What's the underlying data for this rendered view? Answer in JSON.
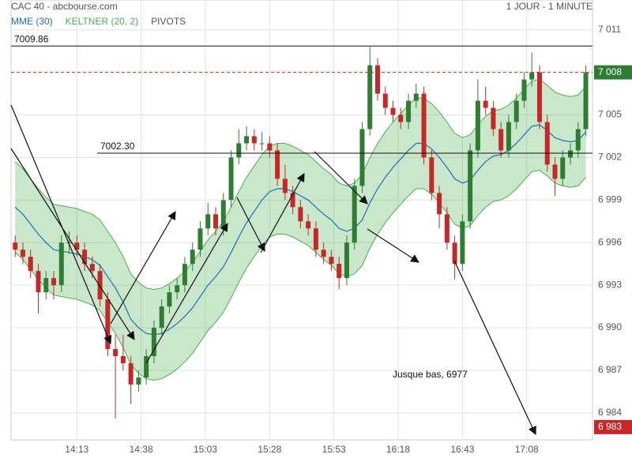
{
  "chart_data": {
    "type": "candlestick",
    "title": "CAC 40 - abcbourse.com",
    "subtitle": "1 JOUR - 1 MINUTE",
    "grid": true,
    "up_color": "#2e7d32",
    "down_color": "#c62828",
    "xlim": [
      827.4,
      1053.6
    ],
    "xticks": [
      {
        "value": 853,
        "label": "14:13"
      },
      {
        "value": 878,
        "label": "14:38"
      },
      {
        "value": 903,
        "label": "15:03"
      },
      {
        "value": 928,
        "label": "15:28"
      },
      {
        "value": 953,
        "label": "15:53"
      },
      {
        "value": 978,
        "label": "16:18"
      },
      {
        "value": 1003,
        "label": "16:43"
      },
      {
        "value": 1028,
        "label": "17:08"
      }
    ],
    "ylim": [
      6982.1,
      7013.1
    ],
    "yticks": [
      {
        "value": 7011,
        "label": "7 011"
      },
      {
        "value": 7005,
        "label": "7 005"
      },
      {
        "value": 7002,
        "label": "7 002"
      },
      {
        "value": 6999,
        "label": "6 999"
      },
      {
        "value": 6996,
        "label": "6 996"
      },
      {
        "value": 6993,
        "label": "6 993"
      },
      {
        "value": 6990,
        "label": "6 990"
      },
      {
        "value": 6987,
        "label": "6 987"
      },
      {
        "value": 6984,
        "label": "6 984"
      }
    ],
    "x": [
      829,
      832,
      835,
      838,
      841,
      844,
      847,
      850,
      853,
      856,
      859,
      862,
      865,
      868,
      871,
      874,
      877,
      880,
      883,
      886,
      889,
      892,
      895,
      898,
      901,
      904,
      907,
      910,
      913,
      916,
      919,
      922,
      925,
      928,
      931,
      934,
      937,
      940,
      943,
      946,
      949,
      952,
      955,
      958,
      961,
      964,
      967,
      970,
      973,
      976,
      979,
      982,
      985,
      988,
      991,
      994,
      997,
      1000,
      1003,
      1006,
      1009,
      1012,
      1015,
      1018,
      1021,
      1024,
      1027,
      1030,
      1033,
      1036,
      1039,
      1042,
      1045,
      1048,
      1051
    ],
    "candles": [
      [
        6996,
        6996.5,
        6995,
        6995.5
      ],
      [
        6995.5,
        6996,
        6994.5,
        6995
      ],
      [
        6995,
        6995.5,
        6993.5,
        6994
      ],
      [
        6994,
        6994.5,
        6991,
        6992.5
      ],
      [
        6992.5,
        6994,
        6992,
        6993.5
      ],
      [
        6993.5,
        6994,
        6992,
        6993
      ],
      [
        6993,
        6996.5,
        6992.5,
        6996
      ],
      [
        6996,
        6996.8,
        6995.2,
        6996
      ],
      [
        6996,
        6996.5,
        6995,
        6995.5
      ],
      [
        6995.5,
        6996,
        6994,
        6994.5
      ],
      [
        6994.5,
        6995,
        6993.5,
        6994
      ],
      [
        6994,
        6994.5,
        6991.5,
        6992
      ],
      [
        6992,
        6992.5,
        6988,
        6988.5
      ],
      [
        6988.5,
        6989.5,
        6983.6,
        6988
      ],
      [
        6988,
        6989.5,
        6987,
        6987.5
      ],
      [
        6987.5,
        6988,
        6984.6,
        6986
      ],
      [
        6986,
        6987,
        6985.5,
        6986.5
      ],
      [
        6986.5,
        6988.5,
        6986,
        6988
      ],
      [
        6988,
        6990.5,
        6987.5,
        6990
      ],
      [
        6990,
        6992,
        6989.5,
        6991.5
      ],
      [
        6991.5,
        6993,
        6991,
        6992.5
      ],
      [
        6992.5,
        6993.5,
        6992,
        6993
      ],
      [
        6993,
        6995,
        6992.5,
        6994.5
      ],
      [
        6994.5,
        6996,
        6994,
        6995.5
      ],
      [
        6995.5,
        6997.5,
        6995,
        6997
      ],
      [
        6997,
        6998.8,
        6996.5,
        6998
      ],
      [
        6998,
        6998.5,
        6996.5,
        6997
      ],
      [
        6997,
        6999.5,
        6996.5,
        6999
      ],
      [
        6999,
        7002.5,
        6998.5,
        7002
      ],
      [
        7002,
        7004,
        7001.5,
        7003
      ],
      [
        7003,
        7004.2,
        7002.5,
        7003.5
      ],
      [
        7003.5,
        7004,
        7002.5,
        7003
      ],
      [
        7003,
        7003.8,
        7002.5,
        7003
      ],
      [
        7003,
        7003.5,
        7002,
        7002.5
      ],
      [
        7002.5,
        7003,
        7000,
        7000.5
      ],
      [
        7000.5,
        7001.5,
        6999,
        6999.5
      ],
      [
        6999.5,
        7000,
        6998,
        6998.5
      ],
      [
        6998.5,
        6999,
        6997,
        6997.5
      ],
      [
        6997.5,
        6998,
        6996.5,
        6997
      ],
      [
        6997,
        6997.5,
        6995,
        6995.5
      ],
      [
        6995.5,
        6996,
        6994.5,
        6995
      ],
      [
        6995,
        6995.5,
        6994,
        6994.5
      ],
      [
        6994.5,
        6995,
        6992.7,
        6993.5
      ],
      [
        6993.5,
        6996.5,
        6993,
        6996
      ],
      [
        6996,
        7000.5,
        6995.5,
        7000
      ],
      [
        7000,
        7004.5,
        6999.5,
        7004
      ],
      [
        7004,
        7009.8,
        7003.5,
        7008.5
      ],
      [
        7008.5,
        7009,
        7006,
        7006.5
      ],
      [
        7006.5,
        7007,
        7005,
        7005.5
      ],
      [
        7005.5,
        7006,
        7004.5,
        7005
      ],
      [
        7005,
        7005.5,
        7004,
        7004.5
      ],
      [
        7004.5,
        7006.5,
        7004,
        7006
      ],
      [
        7006,
        7007.2,
        7005.5,
        7006.5
      ],
      [
        7006.5,
        7007,
        7001.5,
        7002
      ],
      [
        7002,
        7002.5,
        6999,
        6999.5
      ],
      [
        6999.5,
        7000,
        6997,
        6998
      ],
      [
        6998,
        6998.5,
        6995.5,
        6996
      ],
      [
        6996,
        6996.5,
        6993.4,
        6994.5
      ],
      [
        6994.5,
        6998,
        6994,
        6997.5
      ],
      [
        6997.5,
        7003,
        6997,
        7002.5
      ],
      [
        7002.5,
        7007.5,
        7002,
        7006
      ],
      [
        7006,
        7007,
        7005,
        7005.5
      ],
      [
        7005.5,
        7006,
        7003.5,
        7004
      ],
      [
        7004,
        7004.5,
        7002,
        7002.5
      ],
      [
        7002.5,
        7005,
        7002,
        7004.5
      ],
      [
        7004.5,
        7006.5,
        7004,
        7006
      ],
      [
        7006,
        7008,
        7005.5,
        7007.5
      ],
      [
        7007.5,
        7009.4,
        7007,
        7008
      ],
      [
        7008,
        7008.5,
        7004,
        7004.5
      ],
      [
        7004.5,
        7005,
        7001,
        7001.5
      ],
      [
        7001.5,
        7002,
        6999.3,
        7000.5
      ],
      [
        7000.5,
        7002.5,
        7000,
        7002
      ],
      [
        7002,
        7003,
        7001.5,
        7002.5
      ],
      [
        7002.5,
        7004.5,
        7002,
        7004
      ],
      [
        7004,
        7008.5,
        7003.5,
        7008
      ]
    ],
    "series": [
      {
        "name": "MME (30)",
        "color": "#1f6fb4",
        "values": [
          6998.5,
          6998,
          6997.3,
          6996.6,
          6996,
          6995.5,
          6995.4,
          6995.3,
          6995.2,
          6995,
          6994.8,
          6994.4,
          6993.6,
          6992.8,
          6991.8,
          6990.6,
          6990,
          6989.6,
          6989.5,
          6989.6,
          6989.9,
          6990.3,
          6990.8,
          6991.4,
          6992.2,
          6993,
          6993.6,
          6994.3,
          6995.3,
          6996.4,
          6997.4,
          6998.2,
          6999,
          6999.6,
          6999.8,
          6999.8,
          6999.6,
          6999.3,
          6999,
          6998.5,
          6998,
          6997.6,
          6997,
          6996.8,
          6997,
          6997.6,
          6998.8,
          6999.8,
          7000.6,
          7001.3,
          7001.9,
          7002.5,
          7003,
          7003,
          7002.6,
          7002,
          7001.3,
          7000.5,
          7000.2,
          7000.4,
          7001.1,
          7001.7,
          7002.1,
          7002.2,
          7002.5,
          7003,
          7003.6,
          7004.2,
          7004.3,
          7003.9,
          7003.4,
          7003.2,
          7003.1,
          7003.2,
          7003.8
        ]
      },
      {
        "name": "KELTNER (20, 2)",
        "color": "#4caf50",
        "upper": [
          7001.7,
          7001.2,
          7000.5,
          6999.8,
          6999.2,
          6998.7,
          6998.6,
          6998.5,
          6998.4,
          6998.2,
          6998,
          6997.6,
          6996.8,
          6996,
          6995,
          6993.8,
          6993.2,
          6992.8,
          6992.7,
          6992.8,
          6993.1,
          6993.5,
          6994,
          6994.6,
          6995.4,
          6996.2,
          6996.8,
          6997.5,
          6998.5,
          6999.6,
          7000.6,
          7001.4,
          7002.2,
          7002.8,
          7003,
          7003,
          7002.8,
          7002.5,
          7002.2,
          7001.7,
          7001.2,
          7000.8,
          7000.2,
          7000,
          7000.2,
          7000.8,
          7002,
          7003,
          7003.8,
          7004.5,
          7005.1,
          7005.7,
          7006.2,
          7006.2,
          7005.8,
          7005.2,
          7004.5,
          7003.7,
          7003.4,
          7003.6,
          7004.3,
          7004.9,
          7005.3,
          7005.4,
          7005.7,
          7006.2,
          7006.8,
          7007.4,
          7007.5,
          7007.1,
          7006.6,
          7006.4,
          7006.3,
          7006.4,
          7007
        ],
        "lower": [
          6995.3,
          6994.8,
          6994.1,
          6993.4,
          6992.8,
          6992.3,
          6992.2,
          6992.1,
          6992,
          6991.8,
          6991.6,
          6991.2,
          6990.4,
          6989.6,
          6988.6,
          6987.4,
          6986.8,
          6986.4,
          6986.3,
          6986.4,
          6986.7,
          6987.1,
          6987.6,
          6988.2,
          6989,
          6989.8,
          6990.4,
          6991.1,
          6992.1,
          6993.2,
          6994.2,
          6995,
          6995.8,
          6996.4,
          6996.6,
          6996.6,
          6996.4,
          6996.1,
          6995.8,
          6995.3,
          6994.8,
          6994.4,
          6993.8,
          6993.6,
          6993.8,
          6994.4,
          6995.6,
          6996.6,
          6997.4,
          6998.1,
          6998.7,
          6999.3,
          6999.8,
          6999.8,
          6999.4,
          6998.8,
          6998.1,
          6997.3,
          6997,
          6997.2,
          6997.9,
          6998.5,
          6998.9,
          6999,
          6999.3,
          6999.8,
          7000.4,
          7001,
          7001.1,
          7000.7,
          7000.2,
          7000,
          6999.9,
          7000,
          7000.6
        ]
      }
    ],
    "pivots": {
      "name": "PIVOTS",
      "color": "#555555",
      "levels": [
        {
          "value": 7009.86,
          "label": "7009.86"
        },
        {
          "value": 7002.3,
          "label": "7002.30"
        }
      ]
    },
    "last_price": {
      "value": 7008,
      "label": "7 008",
      "color": "#2e7d32"
    },
    "marker_price": {
      "value": 6983,
      "label": "6 983",
      "color": "#c62828"
    },
    "annotation": "Jusque bas, 6977"
  }
}
